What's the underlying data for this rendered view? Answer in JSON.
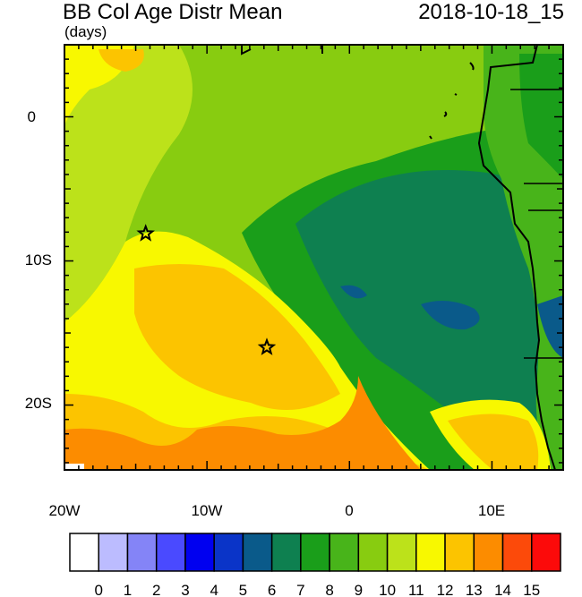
{
  "map": {
    "title": "BB Col Age Distr Mean",
    "units": "(days)",
    "timestamp": "2018-10-18_15",
    "x_ticks": [
      {
        "lon": -20,
        "label": "20W"
      },
      {
        "lon": -10,
        "label": "10W"
      },
      {
        "lon": 0,
        "label": "0"
      },
      {
        "lon": 10,
        "label": "10E"
      }
    ],
    "y_ticks": [
      {
        "lat": 0,
        "label": "0"
      },
      {
        "lat": -10,
        "label": "10S"
      },
      {
        "lat": -20,
        "label": "20S"
      }
    ],
    "lon_range": [
      -20,
      15
    ],
    "lat_range": [
      -24.5,
      5
    ],
    "markers": [
      {
        "name": "star",
        "lon": -14.3,
        "lat": -8.1
      },
      {
        "name": "star",
        "lon": -5.8,
        "lat": -16.0
      }
    ]
  },
  "colorbar": {
    "labels": [
      "0",
      "1",
      "2",
      "3",
      "4",
      "5",
      "6",
      "7",
      "8",
      "9",
      "10",
      "11",
      "12",
      "13",
      "14",
      "15"
    ],
    "colors": [
      "#ffffff",
      "#bcbcff",
      "#8484f7",
      "#4a4aff",
      "#0000f0",
      "#0a34c8",
      "#0a5a8a",
      "#0e8050",
      "#1a9e1a",
      "#48b41a",
      "#88cc10",
      "#bce21a",
      "#f8f800",
      "#fcc400",
      "#fc8c00",
      "#fc4a0a",
      "#fc0a0a"
    ]
  }
}
